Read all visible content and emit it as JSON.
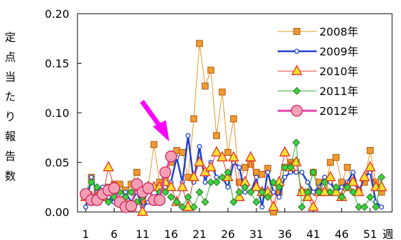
{
  "chart_data": {
    "type": "line",
    "title": "",
    "ylabel": "定点当たり報告数",
    "xlabel": "週",
    "ylim": [
      0,
      0.2
    ],
    "yticks": [
      "0.00",
      "0.05",
      "0.10",
      "0.15",
      "0.20"
    ],
    "xticks": [
      1,
      6,
      11,
      16,
      21,
      26,
      31,
      36,
      41,
      46,
      51
    ],
    "x_tick_labels": [
      "1",
      "6",
      "11",
      "16",
      "21",
      "26",
      "31",
      "36",
      "41",
      "46",
      "51"
    ],
    "x_unit_label": "週",
    "xlim": [
      0,
      53
    ],
    "legend_position": "top-right",
    "grid": false,
    "series": [
      {
        "name": "2008年",
        "color": "#e69520",
        "marker": "square",
        "y": [
          0.02,
          0.035,
          0.02,
          0.02,
          0.025,
          0.028,
          0.028,
          0.022,
          0.028,
          0.04,
          0.01,
          0.025,
          0.068,
          0.03,
          0.035,
          0.05,
          0.062,
          0.06,
          0.035,
          0.094,
          0.17,
          0.127,
          0.143,
          0.077,
          0.121,
          0.06,
          0.094,
          0.03,
          0.045,
          0.048,
          0.04,
          0.038,
          0.044,
          0.0,
          0.02,
          0.045,
          0.05,
          0.05,
          0.02,
          0.02,
          0.04,
          0.03,
          0.02,
          0.05,
          0.055,
          0.03,
          0.045,
          0.03,
          0.02,
          0.03,
          0.062,
          0.03,
          0.02
        ]
      },
      {
        "name": "2009年",
        "color": "#1f3fcc",
        "marker": "circle",
        "y": [
          0.005,
          0.035,
          0.02,
          0.025,
          0.015,
          0.01,
          0.01,
          0.02,
          0.01,
          0.02,
          0.005,
          0.01,
          0.015,
          0.02,
          0.025,
          0.03,
          0.055,
          0.03,
          0.077,
          0.03,
          0.066,
          0.03,
          0.05,
          0.035,
          0.035,
          0.025,
          0.05,
          0.045,
          0.02,
          0.02,
          0.035,
          0.005,
          0.04,
          0.02,
          0.015,
          0.035,
          0.04,
          0.04,
          0.04,
          0.03,
          0.02,
          0.025,
          0.035,
          0.03,
          0.02,
          0.025,
          0.03,
          0.04,
          0.02,
          0.035,
          0.04,
          0.01,
          0.005
        ]
      },
      {
        "name": "2010年",
        "color": "#e33b2c",
        "marker": "triangle",
        "y": [
          0.015,
          0.015,
          0.015,
          0.015,
          0.045,
          0.025,
          0.01,
          0.01,
          0.005,
          0.025,
          0.0,
          0.025,
          0.025,
          0.025,
          0.03,
          0.025,
          0.01,
          0.025,
          0.005,
          0.035,
          0.05,
          0.04,
          0.045,
          0.06,
          0.055,
          0.035,
          0.055,
          0.015,
          0.03,
          0.055,
          0.025,
          0.02,
          0.02,
          0.005,
          0.03,
          0.06,
          0.045,
          0.05,
          0.02,
          0.015,
          0.005,
          0.02,
          0.02,
          0.035,
          0.02,
          0.015,
          0.025,
          0.03,
          0.02,
          0.035,
          0.045,
          0.025,
          0.025
        ]
      },
      {
        "name": "2011年",
        "color": "#2faa2f",
        "marker": "diamond",
        "y": [
          0.02,
          0.03,
          0.025,
          0.015,
          0.01,
          0.015,
          0.02,
          0.015,
          0.02,
          0.01,
          0.015,
          0.025,
          0.01,
          0.02,
          0.02,
          0.015,
          0.01,
          0.005,
          0.015,
          0.005,
          0.02,
          0.01,
          0.03,
          0.03,
          0.035,
          0.04,
          0.01,
          0.02,
          0.025,
          0.02,
          0.01,
          0.02,
          0.015,
          0.03,
          0.025,
          0.045,
          0.045,
          0.07,
          0.005,
          0.02,
          0.04,
          0.02,
          0.03,
          0.02,
          0.025,
          0.015,
          0.025,
          0.02,
          0.005,
          0.005,
          0.015,
          0.005,
          0.035
        ]
      },
      {
        "name": "2012年",
        "color": "#e040a8",
        "marker": "circle-large",
        "fill": "#f4a0b4",
        "y": [
          0.018,
          0.012,
          0.012,
          0.018,
          0.022,
          0.024,
          0.01,
          0.005,
          0.006,
          0.028,
          0.02,
          0.024,
          0.012,
          0.012,
          0.04,
          0.056
        ]
      }
    ]
  }
}
